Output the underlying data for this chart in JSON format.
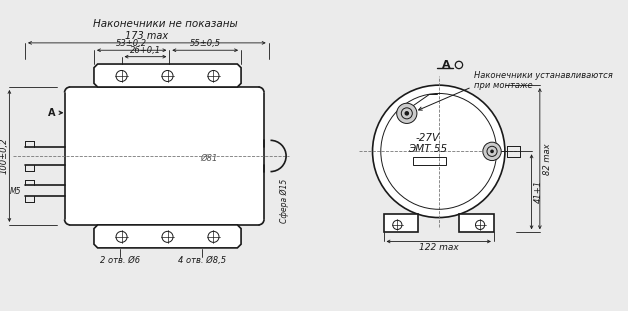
{
  "bg_color": "#ebebeb",
  "line_color": "#1a1a1a",
  "text_color": "#1a1a1a",
  "title_top": "Наконечники не показаны",
  "dim_173": "173 max",
  "dim_53": "53±0,2",
  "dim_55": "55±0,5",
  "dim_26": "26+0,1",
  "dim_100": "100±0,2",
  "dim_m5": "M5",
  "dim_81": "Ø81",
  "dim_15": "Ø15",
  "dim_sfera": "Сфера",
  "dim_6": "2 отв. Ø6",
  "dim_85": "4 отв. Ø8,5",
  "label_A": "A",
  "label_A2": "A",
  "text_note1": "Наконечники устанавливаются",
  "text_note2": "при монтаже",
  "text_27v": "-27V",
  "text_emt": "ЭМТ 55",
  "dim_122": "122 max",
  "dim_82": "82 max",
  "dim_41": "41+1"
}
